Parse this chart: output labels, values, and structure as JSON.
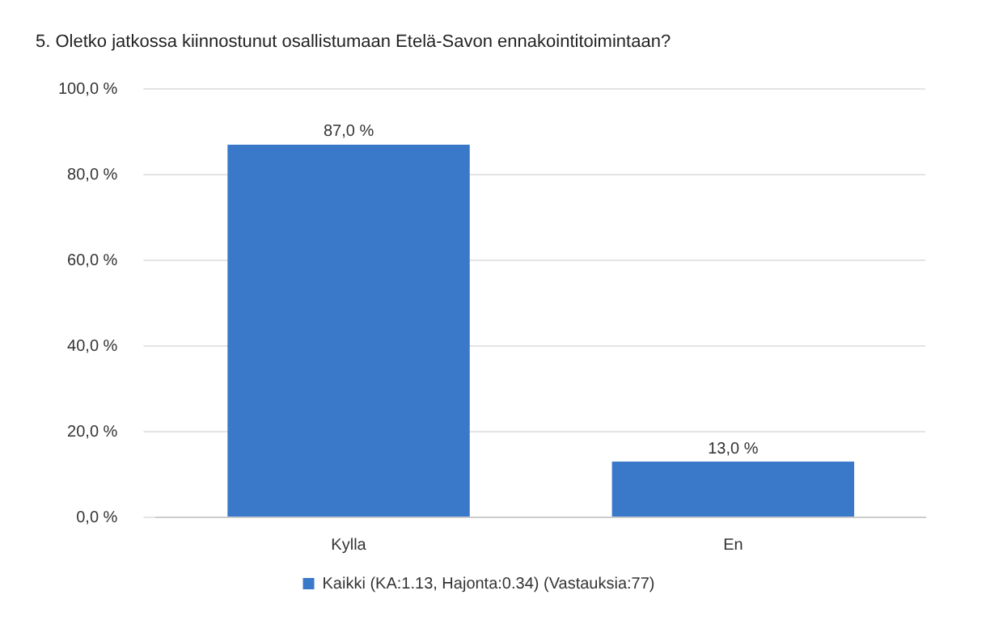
{
  "chart_data": {
    "type": "bar",
    "title": "5. Oletko jatkossa kiinnostunut osallistumaan Etelä-Savon ennakointitoimintaan?",
    "categories": [
      "Kylla",
      "En"
    ],
    "series": [
      {
        "name": "Kaikki (KA:1.13, Hajonta:0.34) (Vastauksia:77)",
        "color": "#3a78c9",
        "values": [
          87,
          13
        ],
        "value_labels": [
          "87,0 %",
          "13,0 %"
        ]
      }
    ],
    "ylim": [
      0,
      100
    ],
    "yticks": [
      {
        "value": 0,
        "label": "0,0 %"
      },
      {
        "value": 20,
        "label": "20,0 %"
      },
      {
        "value": 40,
        "label": "40,0 %"
      },
      {
        "value": 60,
        "label": "60,0 %"
      },
      {
        "value": 80,
        "label": "80,0 %"
      },
      {
        "value": 100,
        "label": "100,0 %"
      }
    ],
    "grid": "y",
    "legend": "bottom"
  }
}
